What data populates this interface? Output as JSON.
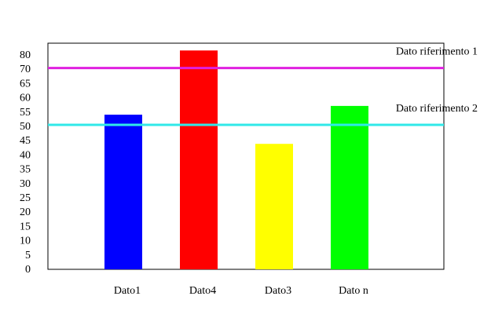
{
  "chart_data": {
    "type": "bar",
    "categories": [
      "Dato1",
      "Dato4",
      "Dato3",
      "Dato n"
    ],
    "values": [
      53,
      75,
      43,
      56
    ],
    "colors": [
      "#0000ff",
      "#ff0000",
      "#ffff00",
      "#00ff00"
    ],
    "yticks": [
      "0",
      "5",
      "10",
      "15",
      "20",
      "25",
      "30",
      "35",
      "40",
      "45",
      "50",
      "55",
      "60",
      "65",
      "70",
      "80"
    ],
    "ylim": [
      0,
      77.5
    ],
    "grid": false,
    "reference_lines": [
      {
        "label": "Dato riferimento 1",
        "value": 69,
        "color": "#e020e0"
      },
      {
        "label": "Dato riferimento 2",
        "value": 49.5,
        "color": "#30e8e8"
      }
    ]
  }
}
